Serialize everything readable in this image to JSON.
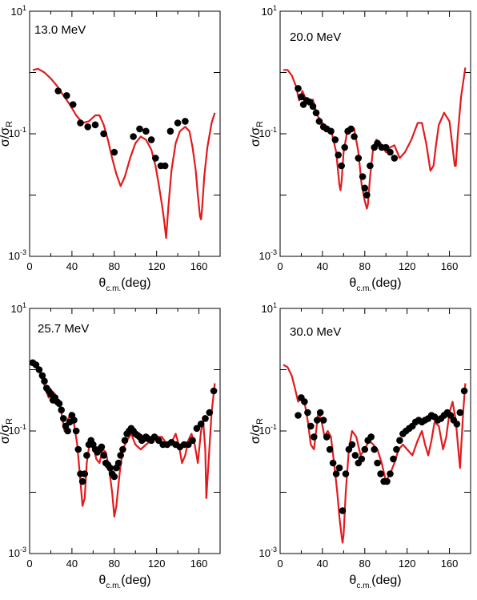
{
  "panels": [
    {
      "label": "13.0 MeV",
      "xlim": [
        0,
        180
      ],
      "ylim": [
        0.001,
        10
      ],
      "xticks": [
        0,
        40,
        80,
        120,
        160
      ],
      "yticks": [
        {
          "value": 10,
          "base": "10",
          "exp": "1"
        },
        {
          "value": 0.1,
          "base": "10",
          "exp": "-1"
        },
        {
          "value": 0.001,
          "base": "10",
          "exp": "-3"
        }
      ],
      "xlabel": {
        "symbol": "θ",
        "sub": "c.m.",
        "unit": "(deg)"
      },
      "ylabel": {
        "sigma": "σ",
        "sigmaR": "σ",
        "sub": "R"
      }
    },
    {
      "label": "20.0 MeV",
      "xlim": [
        0,
        180
      ],
      "ylim": [
        0.001,
        10
      ],
      "xticks": [
        0,
        40,
        80,
        120,
        160
      ],
      "yticks": [
        {
          "value": 10,
          "base": "10",
          "exp": "1"
        },
        {
          "value": 0.1,
          "base": "10",
          "exp": "-1"
        },
        {
          "value": 0.001,
          "base": "10",
          "exp": "-3"
        }
      ],
      "xlabel": {
        "symbol": "θ",
        "sub": "c.m.",
        "unit": "(deg)"
      },
      "ylabel": {
        "sigma": "σ",
        "sigmaR": "σ",
        "sub": "R"
      }
    },
    {
      "label": "25.7 MeV",
      "xlim": [
        0,
        180
      ],
      "ylim": [
        0.001,
        10
      ],
      "xticks": [
        0,
        40,
        80,
        120,
        160
      ],
      "yticks": [
        {
          "value": 10,
          "base": "10",
          "exp": "1"
        },
        {
          "value": 0.1,
          "base": "10",
          "exp": "-1"
        },
        {
          "value": 0.001,
          "base": "10",
          "exp": "-3"
        }
      ],
      "xlabel": {
        "symbol": "θ",
        "sub": "c.m.",
        "unit": "(deg)"
      },
      "ylabel": {
        "sigma": "σ",
        "sigmaR": "σ",
        "sub": "R"
      }
    },
    {
      "label": "30.0 MeV",
      "xlim": [
        0,
        180
      ],
      "ylim": [
        0.001,
        10
      ],
      "xticks": [
        0,
        40,
        80,
        120,
        160
      ],
      "yticks": [
        {
          "value": 10,
          "base": "10",
          "exp": "1"
        },
        {
          "value": 0.1,
          "base": "10",
          "exp": "-1"
        },
        {
          "value": 0.001,
          "base": "10",
          "exp": "-3"
        }
      ],
      "xlabel": {
        "symbol": "θ",
        "sub": "c.m.",
        "unit": "(deg)"
      },
      "ylabel": {
        "sigma": "σ",
        "sigmaR": "σ",
        "sub": "R"
      }
    }
  ],
  "colors": {
    "theory": "#e31a1c",
    "data": "#000000",
    "frame": "#000000"
  },
  "chart_data": [
    {
      "type": "scatter",
      "title": "13.0 MeV",
      "xlim": [
        0,
        180
      ],
      "ylim": [
        0.001,
        10
      ],
      "yscale": "log",
      "grid": false,
      "series": [
        {
          "kind": "points",
          "x": [
            27,
            35,
            41,
            48,
            55,
            62,
            70,
            80,
            98,
            104,
            110,
            115,
            119,
            124,
            128,
            133,
            140,
            147
          ],
          "y": [
            0.5,
            0.42,
            0.3,
            0.15,
            0.13,
            0.14,
            0.1,
            0.05,
            0.09,
            0.12,
            0.11,
            0.08,
            0.04,
            0.03,
            0.03,
            0.11,
            0.15,
            0.16
          ]
        },
        {
          "kind": "curve",
          "x": [
            3,
            8,
            14,
            20,
            26,
            32,
            38,
            44,
            50,
            56,
            62,
            66,
            70,
            74,
            78,
            82,
            86,
            90,
            95,
            100,
            105,
            110,
            115,
            119,
            122,
            125,
            127,
            129,
            131,
            134,
            138,
            142,
            147,
            151,
            154,
            157,
            159,
            161,
            162,
            163,
            165,
            168,
            172,
            175
          ],
          "y": [
            1.1,
            1.15,
            1.0,
            0.8,
            0.6,
            0.42,
            0.3,
            0.2,
            0.15,
            0.16,
            0.2,
            0.2,
            0.14,
            0.08,
            0.04,
            0.022,
            0.014,
            0.02,
            0.04,
            0.07,
            0.09,
            0.08,
            0.055,
            0.03,
            0.015,
            0.007,
            0.004,
            0.002,
            0.006,
            0.025,
            0.07,
            0.11,
            0.13,
            0.11,
            0.06,
            0.025,
            0.01,
            0.0045,
            0.004,
            0.006,
            0.02,
            0.06,
            0.15,
            0.22
          ]
        }
      ]
    },
    {
      "type": "scatter",
      "title": "20.0 MeV",
      "xlim": [
        0,
        180
      ],
      "ylim": [
        0.001,
        10
      ],
      "yscale": "log",
      "grid": false,
      "series": [
        {
          "kind": "points",
          "x": [
            17,
            20,
            22,
            25,
            28,
            31,
            34,
            37,
            41,
            44,
            48,
            52,
            55,
            58,
            61,
            64,
            67,
            70,
            74,
            78,
            80,
            82,
            85,
            89,
            92,
            96,
            100,
            104,
            108
          ],
          "y": [
            0.55,
            0.4,
            0.3,
            0.35,
            0.33,
            0.28,
            0.22,
            0.16,
            0.13,
            0.12,
            0.11,
            0.08,
            0.045,
            0.03,
            0.06,
            0.11,
            0.12,
            0.09,
            0.04,
            0.02,
            0.013,
            0.01,
            0.03,
            0.06,
            0.07,
            0.06,
            0.06,
            0.05,
            0.04
          ]
        },
        {
          "kind": "curve",
          "x": [
            3,
            7,
            11,
            15,
            18,
            21,
            24,
            27,
            31,
            35,
            40,
            45,
            49,
            53,
            56,
            57,
            58,
            60,
            63,
            67,
            70,
            74,
            77,
            80,
            82,
            83,
            85,
            88,
            91,
            95,
            100,
            104,
            108,
            113,
            118,
            124,
            130,
            134,
            138,
            142,
            145,
            147,
            150,
            155,
            160,
            163,
            165,
            166,
            168,
            171,
            175
          ],
          "y": [
            1.1,
            1.1,
            0.9,
            0.6,
            0.35,
            0.5,
            0.38,
            0.3,
            0.36,
            0.2,
            0.15,
            0.12,
            0.1,
            0.05,
            0.015,
            0.012,
            0.016,
            0.05,
            0.1,
            0.13,
            0.12,
            0.05,
            0.015,
            0.008,
            0.006,
            0.007,
            0.02,
            0.06,
            0.08,
            0.07,
            0.05,
            0.06,
            0.065,
            0.04,
            0.05,
            0.08,
            0.15,
            0.15,
            0.07,
            0.025,
            0.03,
            0.06,
            0.14,
            0.22,
            0.16,
            0.06,
            0.03,
            0.03,
            0.1,
            0.4,
            1.2
          ]
        }
      ]
    },
    {
      "type": "scatter",
      "title": "25.7 MeV",
      "xlim": [
        0,
        180
      ],
      "ylim": [
        0.001,
        10
      ],
      "yscale": "log",
      "grid": false,
      "series": [
        {
          "kind": "points",
          "x": [
            3,
            6,
            9,
            12,
            14,
            16,
            18,
            20,
            22,
            24,
            26,
            28,
            30,
            32,
            34,
            36,
            38,
            40,
            42,
            44,
            46,
            48,
            50,
            52,
            54,
            56,
            58,
            60,
            62,
            64,
            66,
            68,
            70,
            72,
            74,
            76,
            78,
            80,
            82,
            84,
            86,
            88,
            90,
            92,
            94,
            96,
            98,
            100,
            102,
            104,
            106,
            108,
            110,
            112,
            115,
            118,
            122,
            126,
            130,
            134,
            138,
            142,
            146,
            150,
            154,
            158,
            162,
            166,
            170,
            174
          ],
          "y": [
            1.3,
            1.2,
            1.0,
            0.8,
            0.65,
            0.5,
            0.45,
            0.4,
            0.32,
            0.35,
            0.3,
            0.28,
            0.22,
            0.16,
            0.12,
            0.1,
            0.14,
            0.18,
            0.15,
            0.1,
            0.05,
            0.02,
            0.015,
            0.02,
            0.04,
            0.06,
            0.07,
            0.06,
            0.05,
            0.045,
            0.05,
            0.055,
            0.04,
            0.03,
            0.028,
            0.025,
            0.02,
            0.018,
            0.025,
            0.03,
            0.04,
            0.05,
            0.07,
            0.09,
            0.1,
            0.11,
            0.1,
            0.09,
            0.085,
            0.08,
            0.07,
            0.075,
            0.08,
            0.075,
            0.07,
            0.08,
            0.07,
            0.06,
            0.06,
            0.065,
            0.06,
            0.055,
            0.06,
            0.06,
            0.07,
            0.11,
            0.13,
            0.16,
            0.2,
            0.45
          ]
        },
        {
          "kind": "curve",
          "x": [
            3,
            7,
            11,
            15,
            18,
            21,
            24,
            27,
            30,
            33,
            36,
            39,
            42,
            45,
            48,
            50,
            52,
            54,
            57,
            60,
            63,
            66,
            69,
            72,
            75,
            78,
            80,
            82,
            85,
            88,
            92,
            96,
            100,
            105,
            110,
            115,
            120,
            125,
            130,
            135,
            138,
            141,
            144,
            147,
            150,
            153,
            156,
            159,
            162,
            164,
            166,
            167,
            169,
            172,
            175
          ],
          "y": [
            1.2,
            1.1,
            0.8,
            0.5,
            0.35,
            0.45,
            0.4,
            0.3,
            0.2,
            0.1,
            0.15,
            0.2,
            0.13,
            0.06,
            0.015,
            0.006,
            0.008,
            0.03,
            0.07,
            0.06,
            0.035,
            0.03,
            0.05,
            0.045,
            0.025,
            0.01,
            0.004,
            0.006,
            0.02,
            0.05,
            0.07,
            0.09,
            0.06,
            0.05,
            0.06,
            0.07,
            0.08,
            0.08,
            0.06,
            0.07,
            0.09,
            0.06,
            0.03,
            0.04,
            0.07,
            0.09,
            0.06,
            0.03,
            0.1,
            0.15,
            0.05,
            0.008,
            0.03,
            0.2,
            0.6
          ]
        }
      ]
    },
    {
      "type": "scatter",
      "title": "30.0 MeV",
      "xlim": [
        0,
        180
      ],
      "ylim": [
        0.001,
        10
      ],
      "yscale": "log",
      "grid": false,
      "series": [
        {
          "kind": "points",
          "x": [
            17,
            20,
            23,
            26,
            29,
            32,
            35,
            38,
            41,
            44,
            47,
            50,
            53,
            56,
            59,
            62,
            65,
            68,
            71,
            74,
            77,
            80,
            83,
            86,
            89,
            92,
            95,
            98,
            101,
            104,
            107,
            110,
            113,
            116,
            119,
            122,
            125,
            128,
            131,
            134,
            137,
            140,
            143,
            146,
            149,
            152,
            155,
            158,
            161,
            164,
            167,
            170,
            174
          ],
          "y": [
            0.18,
            0.35,
            0.3,
            0.2,
            0.12,
            0.08,
            0.15,
            0.2,
            0.15,
            0.08,
            0.05,
            0.03,
            0.02,
            0.025,
            0.005,
            0.02,
            0.05,
            0.06,
            0.04,
            0.03,
            0.035,
            0.05,
            0.07,
            0.08,
            0.05,
            0.03,
            0.02,
            0.015,
            0.015,
            0.02,
            0.035,
            0.05,
            0.07,
            0.09,
            0.1,
            0.11,
            0.12,
            0.14,
            0.15,
            0.14,
            0.15,
            0.16,
            0.18,
            0.17,
            0.15,
            0.16,
            0.18,
            0.2,
            0.18,
            0.15,
            0.13,
            0.2,
            0.45
          ]
        },
        {
          "kind": "curve",
          "x": [
            3,
            7,
            11,
            14,
            17,
            20,
            23,
            26,
            29,
            32,
            34,
            36,
            39,
            42,
            45,
            48,
            51,
            54,
            56,
            58,
            59,
            60,
            62,
            65,
            68,
            72,
            76,
            80,
            84,
            88,
            92,
            96,
            100,
            104,
            108,
            112,
            116,
            120,
            125,
            130,
            134,
            137,
            140,
            143,
            146,
            150,
            154,
            157,
            160,
            163,
            166,
            168,
            170,
            173,
            175
          ],
          "y": [
            1.2,
            1.1,
            0.8,
            0.5,
            0.3,
            0.35,
            0.3,
            0.15,
            0.06,
            0.05,
            0.1,
            0.2,
            0.15,
            0.08,
            0.1,
            0.08,
            0.03,
            0.01,
            0.004,
            0.002,
            0.0015,
            0.002,
            0.01,
            0.05,
            0.1,
            0.08,
            0.04,
            0.05,
            0.07,
            0.06,
            0.05,
            0.03,
            0.015,
            0.02,
            0.03,
            0.05,
            0.06,
            0.05,
            0.04,
            0.07,
            0.1,
            0.06,
            0.04,
            0.07,
            0.14,
            0.12,
            0.05,
            0.08,
            0.2,
            0.3,
            0.15,
            0.06,
            0.025,
            0.2,
            0.6
          ]
        }
      ]
    }
  ]
}
